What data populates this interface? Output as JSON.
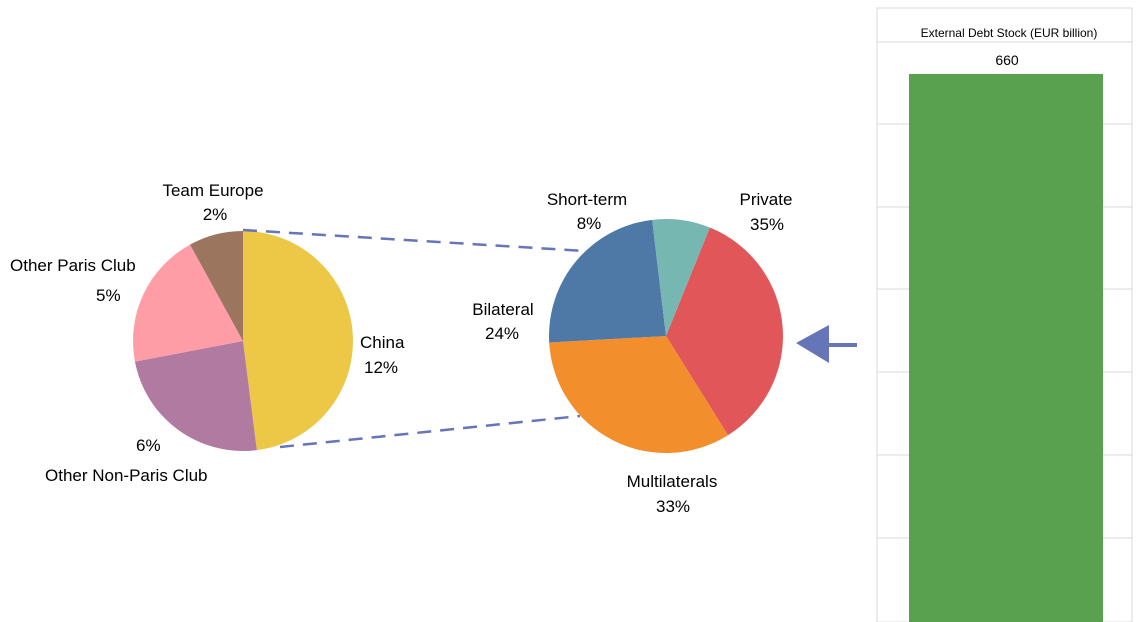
{
  "chart_data": [
    {
      "type": "pie",
      "name": "bilateral-breakdown",
      "slices": [
        {
          "label": "China",
          "pct": "12%",
          "value": 12,
          "color": "#ecc846"
        },
        {
          "label": "Other Non-Paris Club",
          "pct": "6%",
          "value": 6,
          "color": "#b07aa1"
        },
        {
          "label": "Other Paris Club",
          "pct": "5%",
          "value": 5,
          "color": "#ff9da7"
        },
        {
          "label": "Team Europe",
          "pct": "2%",
          "value": 2,
          "color": "#9c755f"
        }
      ]
    },
    {
      "type": "pie",
      "name": "creditor-composition",
      "slices": [
        {
          "label": "Private",
          "pct": "35%",
          "value": 35,
          "color": "#e15759"
        },
        {
          "label": "Multilaterals",
          "pct": "33%",
          "value": 33,
          "color": "#f28e2b"
        },
        {
          "label": "Bilateral",
          "pct": "24%",
          "value": 24,
          "color": "#4e79a7"
        },
        {
          "label": "Short-term",
          "pct": "8%",
          "value": 8,
          "color": "#76b7b2"
        }
      ]
    },
    {
      "type": "bar",
      "title": "External Debt Stock (EUR billion)",
      "categories": [
        ""
      ],
      "values": [
        660
      ],
      "value_label": "660",
      "color": "#59a14f",
      "ylim": [
        0,
        660
      ],
      "grid": true
    }
  ],
  "connectors": {
    "color": "#6674b8",
    "style": "dashed"
  },
  "arrow": {
    "color": "#6674b8"
  }
}
